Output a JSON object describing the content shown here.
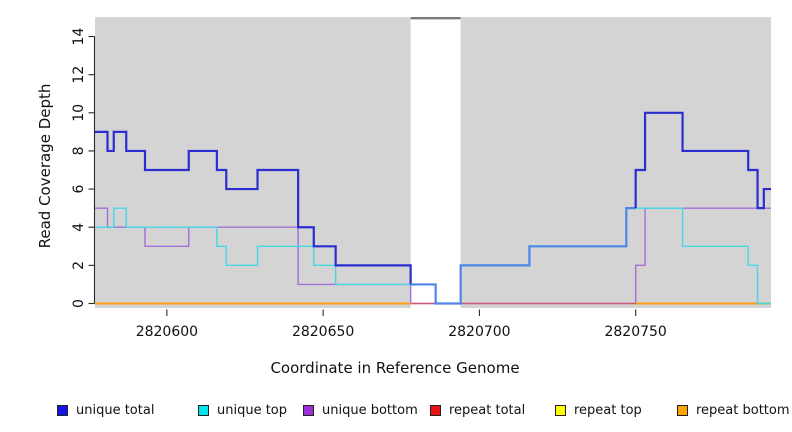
{
  "chart_data": {
    "type": "line",
    "subtype": "step-coverage",
    "title": "",
    "xlabel": "Coordinate in Reference Genome",
    "ylabel": "Read Coverage Depth",
    "xlim": [
      2820577,
      2820793.3
    ],
    "ylim": [
      0,
      15.02
    ],
    "x_ticks": [
      2820600,
      2820650,
      2820700,
      2820750
    ],
    "y_ticks": [
      0,
      2,
      4,
      6,
      8,
      10,
      12,
      14
    ],
    "grid": false,
    "panel_bg": "#d4d4d4",
    "masked_region": {
      "from": 2820678,
      "to": 2820694,
      "color": "#ffffff",
      "top_border_color": "#7a7a7a"
    },
    "series": [
      {
        "name": "repeat top",
        "color": "#ffff00",
        "width": 1.2,
        "points": [
          [
            2820577,
            0
          ],
          [
            2820793.3,
            0
          ]
        ]
      },
      {
        "name": "unique bottom",
        "color": "#a46fd6",
        "width": 1.4,
        "points": [
          [
            2820577,
            5
          ],
          [
            2820581,
            4
          ],
          [
            2820593,
            3
          ],
          [
            2820607,
            4
          ],
          [
            2820642,
            1
          ],
          [
            2820678,
            0
          ],
          [
            2820750,
            2
          ],
          [
            2820753,
            5
          ],
          [
            2820793.3,
            5
          ]
        ]
      },
      {
        "name": "repeat total",
        "color": "#c85a78",
        "width": 1.3,
        "points": [
          [
            2820577,
            0
          ],
          [
            2820793.3,
            0
          ]
        ]
      },
      {
        "name": "repeat bottom",
        "color": "#ff9d10",
        "width": 2,
        "points": [
          [
            2820577,
            0
          ],
          [
            2820793.3,
            0
          ]
        ],
        "gaps": [
          [
            2820678,
            2820750
          ]
        ]
      },
      {
        "name": "unique top",
        "color": "#45d9e8",
        "width": 1.4,
        "points": [
          [
            2820577,
            4
          ],
          [
            2820583,
            5
          ],
          [
            2820587,
            4
          ],
          [
            2820616,
            3
          ],
          [
            2820619,
            2
          ],
          [
            2820629,
            3
          ],
          [
            2820647,
            2
          ],
          [
            2820654,
            1
          ],
          [
            2820686,
            0
          ],
          [
            2820694,
            2
          ],
          [
            2820716,
            3
          ],
          [
            2820747,
            5
          ],
          [
            2820765,
            3
          ],
          [
            2820786,
            2
          ],
          [
            2820789,
            0
          ],
          [
            2820793.3,
            0
          ]
        ]
      },
      {
        "name": "unique total",
        "color": "#2d2dd2",
        "width": 2.2,
        "points": [
          [
            2820577,
            9
          ],
          [
            2820581,
            8
          ],
          [
            2820583,
            9
          ],
          [
            2820587,
            8
          ],
          [
            2820593,
            7
          ],
          [
            2820607,
            8
          ],
          [
            2820616,
            7
          ],
          [
            2820619,
            6
          ],
          [
            2820629,
            7
          ],
          [
            2820642,
            4
          ],
          [
            2820647,
            3
          ],
          [
            2820654,
            2
          ],
          [
            2820678,
            1
          ],
          [
            2820686,
            0
          ],
          [
            2820694,
            2
          ],
          [
            2820716,
            3
          ],
          [
            2820747,
            5
          ],
          [
            2820750,
            7
          ],
          [
            2820753,
            10
          ],
          [
            2820765,
            8
          ],
          [
            2820786,
            7
          ],
          [
            2820789,
            5
          ],
          [
            2820791,
            6
          ],
          [
            2820793.3,
            6
          ]
        ],
        "color_overrides": [
          {
            "from": 2820678,
            "to": 2820750,
            "color": "#4b86e8"
          }
        ]
      }
    ],
    "legend": [
      {
        "label": "unique total",
        "color": "#1414e6"
      },
      {
        "label": "unique top",
        "color": "#00e5ee"
      },
      {
        "label": "unique bottom",
        "color": "#9b30d9"
      },
      {
        "label": "repeat total",
        "color": "#ee1111"
      },
      {
        "label": "repeat top",
        "color": "#ffff00"
      },
      {
        "label": "repeat bottom",
        "color": "#ffa502"
      }
    ],
    "legend_position": "bottom"
  }
}
